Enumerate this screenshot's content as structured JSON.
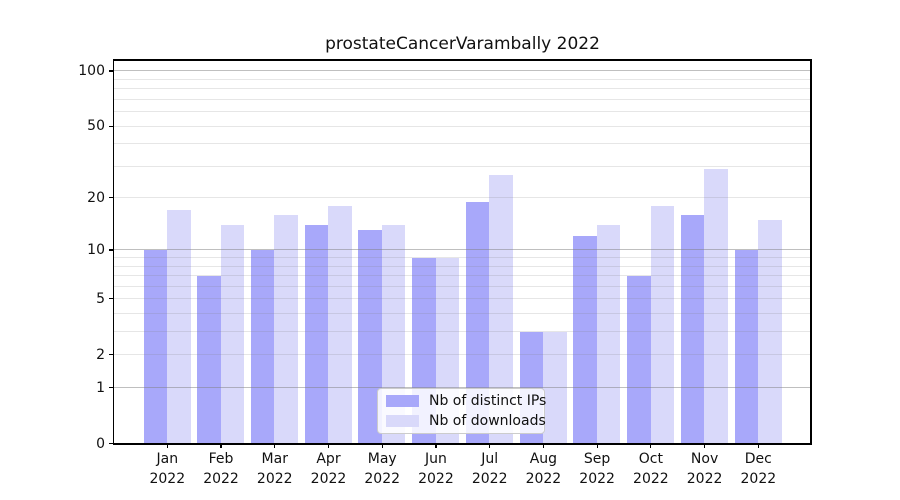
{
  "figure": {
    "title": "prostateCancerVarambally 2022"
  },
  "chart_data": {
    "type": "bar",
    "title": "prostateCancerVarambally 2022",
    "x_tick_months": [
      "Jan",
      "Feb",
      "Mar",
      "Apr",
      "May",
      "Jun",
      "Jul",
      "Aug",
      "Sep",
      "Oct",
      "Nov",
      "Dec"
    ],
    "x_tick_year": "2022",
    "series": [
      {
        "name": "Nb of distinct IPs",
        "color": "#a8a8fa",
        "values": [
          10,
          7,
          10,
          14,
          13,
          9,
          19,
          3,
          12,
          7,
          16,
          10
        ]
      },
      {
        "name": "Nb of downloads",
        "color": "#d9d9fa",
        "values": [
          17,
          14,
          16,
          18,
          14,
          9,
          27,
          3,
          14,
          18,
          29,
          15
        ]
      }
    ],
    "yscale": "log1p",
    "ylim": [
      0,
      115
    ],
    "yticks": [
      0,
      1,
      2,
      5,
      10,
      20,
      50,
      100
    ],
    "grid_major_at": [
      1,
      10,
      100
    ],
    "grid_minor_at": [
      2,
      3,
      4,
      5,
      6,
      7,
      8,
      9,
      20,
      30,
      40,
      50,
      60,
      70,
      80,
      90
    ],
    "grid": "on",
    "legend_position": "lower center"
  },
  "colors": {
    "background": "#ffffff",
    "series_ips": "#a8a8fa",
    "series_downloads": "#d9d9fa",
    "axis": "#000000",
    "text": "#111111",
    "grid_major": "rgba(128,128,128,0.5)",
    "grid_minor": "rgba(128,128,128,0.2)"
  }
}
